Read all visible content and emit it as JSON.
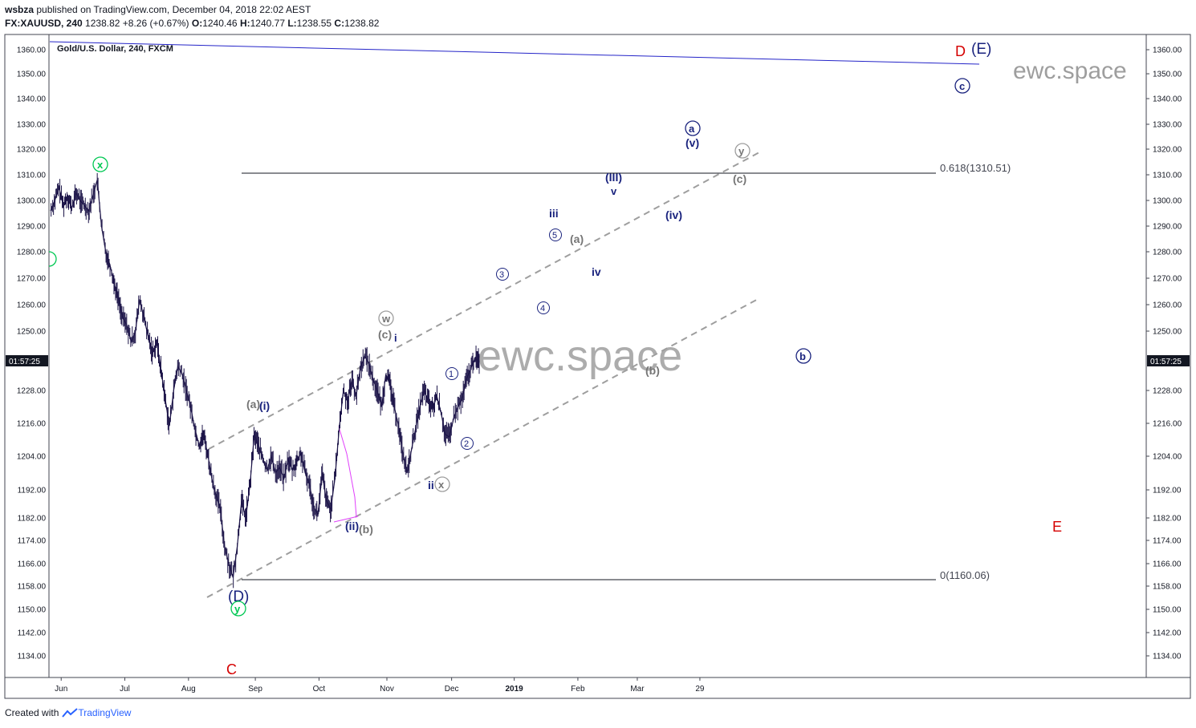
{
  "header": {
    "user": "wsbza",
    "published": "published on TradingView.com, December 04, 2018 22:02 AEST",
    "symbol": "FX:XAUUSD, 240",
    "price": "1238.82",
    "change": "+8.26 (+0.67%)",
    "open": "1240.46",
    "high": "1240.77",
    "low": "1238.55",
    "close": "1238.82"
  },
  "footer": {
    "created_with": "Created with",
    "brand": "TradingView"
  },
  "chart_data": {
    "type": "line",
    "title": "Gold/U.S. Dollar, 240, FXCM",
    "ylim": [
      1127,
      1368
    ],
    "y_ticks": [
      1134,
      1142,
      1150,
      1158,
      1166,
      1174,
      1182,
      1192,
      1204,
      1216,
      1228,
      1250,
      1260,
      1270,
      1280,
      1290,
      1300,
      1310,
      1320,
      1330,
      1340,
      1350,
      1360
    ],
    "y_tick_labels": [
      "1134.00",
      "1142.00",
      "1150.00",
      "1158.00",
      "1166.00",
      "1174.00",
      "1182.00",
      "1192.00",
      "1204.00",
      "1216.00",
      "1228.00",
      "1250.00",
      "1260.00",
      "1270.00",
      "1280.00",
      "1290.00",
      "1300.00",
      "1310.00",
      "1320.00",
      "1330.00",
      "1340.00",
      "1350.00",
      "1360.00"
    ],
    "x_ticks": [
      "Jun",
      "Jul",
      "Aug",
      "Sep",
      "Oct",
      "Nov",
      "Dec",
      "2019",
      "Feb",
      "Mar",
      "29"
    ],
    "x_tick_day": [
      10,
      70,
      130,
      193,
      253,
      317,
      378,
      437,
      497,
      553,
      612
    ],
    "countdown": "01:57:25",
    "current_price": 1238.82,
    "price_series": {
      "day": [
        0,
        4,
        8,
        12,
        16,
        20,
        24,
        28,
        32,
        36,
        40,
        44,
        48,
        52,
        56,
        60,
        64,
        68,
        72,
        76,
        80,
        84,
        88,
        92,
        96,
        100,
        104,
        108,
        112,
        116,
        120,
        124,
        128,
        132,
        136,
        140,
        144,
        148,
        152,
        156,
        160,
        164,
        168,
        172,
        176,
        180,
        184,
        188,
        192,
        196,
        200,
        204,
        208,
        212,
        216,
        220,
        224,
        228,
        232,
        236,
        240,
        244,
        248,
        252,
        256,
        260,
        264,
        268,
        272,
        276,
        280,
        284,
        288,
        292,
        296,
        300,
        304,
        308,
        312,
        316,
        320,
        324,
        328,
        332,
        336,
        340,
        344,
        348,
        352,
        356,
        360,
        364,
        368,
        372,
        376,
        380,
        384,
        388,
        392,
        396,
        400,
        404
      ],
      "close": [
        1296,
        1300,
        1305,
        1298,
        1302,
        1297,
        1303,
        1300,
        1298,
        1296,
        1302,
        1308,
        1290,
        1280,
        1275,
        1268,
        1262,
        1255,
        1252,
        1246,
        1250,
        1262,
        1255,
        1248,
        1242,
        1246,
        1236,
        1225,
        1215,
        1228,
        1237,
        1234,
        1228,
        1222,
        1214,
        1208,
        1212,
        1205,
        1196,
        1190,
        1185,
        1172,
        1166,
        1161,
        1172,
        1188,
        1182,
        1194,
        1212,
        1208,
        1203,
        1199,
        1204,
        1198,
        1200,
        1196,
        1203,
        1199,
        1202,
        1205,
        1198,
        1194,
        1186,
        1183,
        1198,
        1188,
        1185,
        1196,
        1214,
        1228,
        1224,
        1232,
        1226,
        1236,
        1241,
        1238,
        1232,
        1228,
        1222,
        1234,
        1230,
        1222,
        1215,
        1205,
        1198,
        1206,
        1214,
        1222,
        1228,
        1224,
        1221,
        1226,
        1220,
        1212,
        1211,
        1218,
        1222,
        1225,
        1232,
        1236,
        1240,
        1238.82
      ]
    }
  },
  "annotations": {
    "watermark_big": "ewc.space",
    "watermark_small": "ewc.space",
    "fib_618": "0.618(1310.51)",
    "fib_0": "0(1160.06)",
    "labels": {
      "D_red": "D",
      "E_blue": "(E)",
      "c_circle": "c",
      "a_circle": "a",
      "v_paren": "(v)",
      "y_circle_gray": "y",
      "c_paren_gray": "(c)",
      "III_paren": "(III)",
      "v_small": "v",
      "iii": "iii",
      "iv_paren": "(iv)",
      "five": "5",
      "a_paren_gray": "(a)",
      "three": "3",
      "iv": "iv",
      "four": "4",
      "w_circle": "w",
      "c_paren_gray2": "(c)",
      "i_small": "i",
      "b_circle": "b",
      "b_paren_gray": "(b)",
      "one": "1",
      "a_paren_gray2": "(a)",
      "i_paren": "(i)",
      "two": "2",
      "ii": "ii",
      "x_circle_gray": "x",
      "ii_paren": "(ii)",
      "b_paren_gray2": "(b)",
      "D_paren": "(D)",
      "y_circle_green": "y",
      "C_red": "C",
      "E_red": "E",
      "x_circle_green": "x"
    }
  }
}
